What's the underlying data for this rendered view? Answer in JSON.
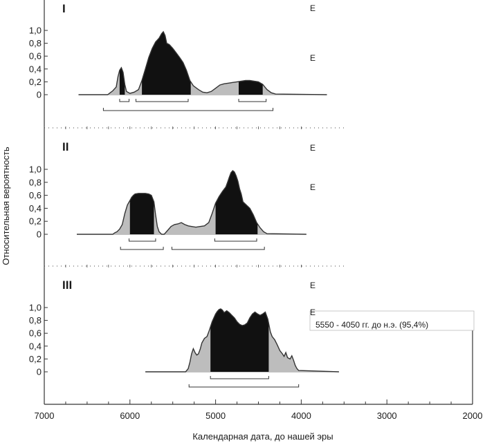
{
  "chart_data": {
    "type": "area",
    "xlabel": "Календарная дата, до нашей эры",
    "ylabel": "Относительная вероятность",
    "x_ticks": [
      "7000",
      "6000",
      "5000",
      "4000",
      "3000",
      "2000"
    ],
    "x_tick_values": [
      7000,
      6000,
      5000,
      4000,
      3000,
      2000
    ],
    "y_ticks": [
      "1,0",
      "0,8",
      "0,6",
      "0,4",
      "0,2",
      "0"
    ],
    "y_tick_values": [
      1.0,
      0.8,
      0.6,
      0.4,
      0.2,
      0
    ],
    "xlim": [
      7000,
      2000
    ],
    "ylim": [
      0,
      1
    ],
    "colors": {
      "hpd68": "#111111",
      "hpd95": "#bdbdbd",
      "outline": "#333333"
    },
    "legend_fragments": [
      "E",
      "E",
      "E",
      "E",
      "E",
      "E",
      "5550 - 4050 гг. до н.э. (95,4%)"
    ],
    "panels": [
      {
        "label": "I",
        "curve": [
          [
            6600,
            0
          ],
          [
            6260,
            0
          ],
          [
            6230,
            0.03
          ],
          [
            6200,
            0.06
          ],
          [
            6160,
            0.12
          ],
          [
            6140,
            0.28
          ],
          [
            6120,
            0.38
          ],
          [
            6100,
            0.42
          ],
          [
            6080,
            0.35
          ],
          [
            6060,
            0.16
          ],
          [
            6040,
            0.05
          ],
          [
            6000,
            0.02
          ],
          [
            5950,
            0.04
          ],
          [
            5900,
            0.08
          ],
          [
            5860,
            0.22
          ],
          [
            5820,
            0.4
          ],
          [
            5780,
            0.58
          ],
          [
            5740,
            0.72
          ],
          [
            5700,
            0.82
          ],
          [
            5660,
            0.88
          ],
          [
            5630,
            0.95
          ],
          [
            5610,
            0.98
          ],
          [
            5590,
            0.92
          ],
          [
            5570,
            0.8
          ],
          [
            5540,
            0.78
          ],
          [
            5500,
            0.72
          ],
          [
            5460,
            0.65
          ],
          [
            5420,
            0.58
          ],
          [
            5380,
            0.5
          ],
          [
            5340,
            0.38
          ],
          [
            5300,
            0.22
          ],
          [
            5260,
            0.14
          ],
          [
            5200,
            0.08
          ],
          [
            5150,
            0.04
          ],
          [
            5100,
            0.03
          ],
          [
            5050,
            0.05
          ],
          [
            5000,
            0.1
          ],
          [
            4950,
            0.15
          ],
          [
            4900,
            0.17
          ],
          [
            4850,
            0.18
          ],
          [
            4800,
            0.19
          ],
          [
            4750,
            0.2
          ],
          [
            4700,
            0.21
          ],
          [
            4650,
            0.22
          ],
          [
            4600,
            0.22
          ],
          [
            4550,
            0.21
          ],
          [
            4500,
            0.2
          ],
          [
            4450,
            0.16
          ],
          [
            4400,
            0.08
          ],
          [
            4350,
            0.03
          ],
          [
            4300,
            0.01
          ],
          [
            3700,
            0
          ]
        ],
        "hpd68": [
          [
            6120,
            6060
          ],
          [
            5860,
            5290
          ],
          [
            4730,
            4450
          ]
        ],
        "hpd68_brackets": [
          [
            6120,
            6010
          ],
          [
            5930,
            5320
          ],
          [
            4730,
            4410
          ]
        ],
        "hpd95_brackets": [
          [
            6310,
            4330
          ]
        ]
      },
      {
        "label": "II",
        "curve": [
          [
            6620,
            0
          ],
          [
            6200,
            0
          ],
          [
            6180,
            0.02
          ],
          [
            6150,
            0.04
          ],
          [
            6120,
            0.08
          ],
          [
            6090,
            0.15
          ],
          [
            6060,
            0.32
          ],
          [
            6030,
            0.45
          ],
          [
            6000,
            0.52
          ],
          [
            5980,
            0.57
          ],
          [
            5960,
            0.6
          ],
          [
            5940,
            0.62
          ],
          [
            5900,
            0.63
          ],
          [
            5860,
            0.63
          ],
          [
            5820,
            0.63
          ],
          [
            5780,
            0.62
          ],
          [
            5750,
            0.6
          ],
          [
            5720,
            0.5
          ],
          [
            5700,
            0.3
          ],
          [
            5680,
            0.12
          ],
          [
            5660,
            0.04
          ],
          [
            5630,
            0.0
          ],
          [
            5600,
            0.0
          ],
          [
            5560,
            0.06
          ],
          [
            5520,
            0.12
          ],
          [
            5480,
            0.15
          ],
          [
            5440,
            0.16
          ],
          [
            5400,
            0.18
          ],
          [
            5360,
            0.15
          ],
          [
            5320,
            0.13
          ],
          [
            5280,
            0.12
          ],
          [
            5230,
            0.11
          ],
          [
            5180,
            0.12
          ],
          [
            5130,
            0.13
          ],
          [
            5080,
            0.18
          ],
          [
            5040,
            0.32
          ],
          [
            5000,
            0.48
          ],
          [
            4960,
            0.58
          ],
          [
            4920,
            0.66
          ],
          [
            4880,
            0.73
          ],
          [
            4860,
            0.8
          ],
          [
            4840,
            0.88
          ],
          [
            4820,
            0.95
          ],
          [
            4800,
            0.98
          ],
          [
            4780,
            0.96
          ],
          [
            4760,
            0.9
          ],
          [
            4740,
            0.82
          ],
          [
            4720,
            0.7
          ],
          [
            4700,
            0.62
          ],
          [
            4680,
            0.5
          ],
          [
            4640,
            0.45
          ],
          [
            4600,
            0.4
          ],
          [
            4560,
            0.3
          ],
          [
            4520,
            0.18
          ],
          [
            4480,
            0.1
          ],
          [
            4440,
            0.04
          ],
          [
            4400,
            0.01
          ],
          [
            3940,
            0
          ]
        ],
        "hpd68": [
          [
            6000,
            5720
          ],
          [
            5000,
            4510
          ]
        ],
        "hpd68_brackets": [
          [
            6010,
            5700
          ],
          [
            5010,
            4520
          ]
        ],
        "hpd95_brackets": [
          [
            6110,
            5610
          ],
          [
            5510,
            4430
          ]
        ]
      },
      {
        "label": "III",
        "curve": [
          [
            5820,
            0
          ],
          [
            5350,
            0
          ],
          [
            5320,
            0.05
          ],
          [
            5300,
            0.15
          ],
          [
            5280,
            0.28
          ],
          [
            5260,
            0.36
          ],
          [
            5240,
            0.3
          ],
          [
            5220,
            0.26
          ],
          [
            5200,
            0.28
          ],
          [
            5180,
            0.35
          ],
          [
            5160,
            0.45
          ],
          [
            5130,
            0.52
          ],
          [
            5100,
            0.55
          ],
          [
            5080,
            0.62
          ],
          [
            5060,
            0.7
          ],
          [
            5040,
            0.78
          ],
          [
            5020,
            0.84
          ],
          [
            5000,
            0.9
          ],
          [
            4980,
            0.94
          ],
          [
            4960,
            0.97
          ],
          [
            4940,
            0.98
          ],
          [
            4920,
            0.96
          ],
          [
            4900,
            0.92
          ],
          [
            4870,
            0.95
          ],
          [
            4840,
            0.92
          ],
          [
            4810,
            0.88
          ],
          [
            4780,
            0.84
          ],
          [
            4750,
            0.78
          ],
          [
            4720,
            0.74
          ],
          [
            4690,
            0.72
          ],
          [
            4660,
            0.73
          ],
          [
            4630,
            0.76
          ],
          [
            4600,
            0.84
          ],
          [
            4570,
            0.9
          ],
          [
            4540,
            0.93
          ],
          [
            4510,
            0.9
          ],
          [
            4480,
            0.88
          ],
          [
            4450,
            0.9
          ],
          [
            4420,
            0.93
          ],
          [
            4390,
            0.82
          ],
          [
            4360,
            0.62
          ],
          [
            4340,
            0.55
          ],
          [
            4310,
            0.5
          ],
          [
            4280,
            0.42
          ],
          [
            4250,
            0.33
          ],
          [
            4220,
            0.28
          ],
          [
            4200,
            0.24
          ],
          [
            4180,
            0.3
          ],
          [
            4160,
            0.22
          ],
          [
            4130,
            0.2
          ],
          [
            4110,
            0.25
          ],
          [
            4090,
            0.18
          ],
          [
            4070,
            0.1
          ],
          [
            4050,
            0.05
          ],
          [
            4030,
            0.02
          ],
          [
            3560,
            0
          ]
        ],
        "hpd68": [
          [
            5060,
            4380
          ]
        ],
        "hpd68_brackets": [
          [
            5060,
            4380
          ]
        ],
        "hpd95_brackets": [
          [
            5310,
            4030
          ]
        ]
      }
    ]
  }
}
